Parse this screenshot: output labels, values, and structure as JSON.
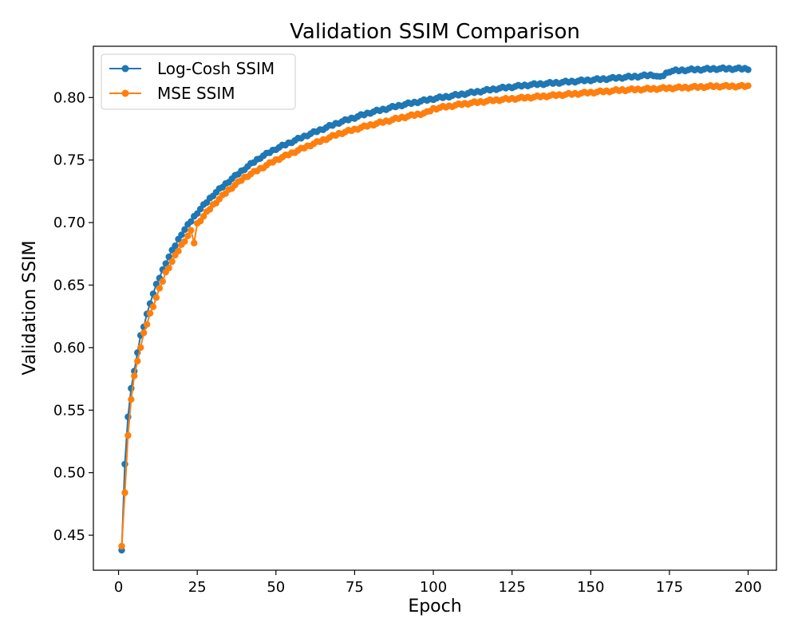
{
  "chart_data": {
    "type": "line",
    "title": "Validation SSIM Comparison",
    "xlabel": "Epoch",
    "ylabel": "Validation SSIM",
    "xlim": [
      -8,
      209
    ],
    "ylim": [
      0.422,
      0.841
    ],
    "xticks": [
      0,
      25,
      50,
      75,
      100,
      125,
      150,
      175,
      200
    ],
    "yticks": [
      0.45,
      0.5,
      0.55,
      0.6,
      0.65,
      0.7,
      0.75,
      0.8
    ],
    "ytick_labels": [
      "0.45",
      "0.50",
      "0.55",
      "0.60",
      "0.65",
      "0.70",
      "0.75",
      "0.80"
    ],
    "grid": false,
    "legend_position": "top-left",
    "markers": "circle",
    "series": [
      {
        "name": "Log-Cosh SSIM",
        "color": "#1f77b4",
        "x": [
          1,
          2,
          3,
          4,
          5,
          6,
          7,
          8,
          10,
          12,
          15,
          20,
          25,
          30,
          35,
          40,
          45,
          50,
          60,
          70,
          80,
          90,
          100,
          110,
          120,
          130,
          140,
          150,
          160,
          170,
          172,
          175,
          180,
          190,
          200
        ],
        "y": [
          0.438,
          0.506,
          0.545,
          0.567,
          0.582,
          0.596,
          0.609,
          0.617,
          0.636,
          0.65,
          0.668,
          0.691,
          0.708,
          0.722,
          0.733,
          0.743,
          0.752,
          0.759,
          0.77,
          0.78,
          0.788,
          0.794,
          0.799,
          0.803,
          0.807,
          0.81,
          0.812,
          0.814,
          0.816,
          0.818,
          0.816,
          0.821,
          0.822,
          0.823,
          0.823
        ]
      },
      {
        "name": "MSE SSIM",
        "color": "#ff7f0e",
        "x": [
          1,
          2,
          3,
          4,
          5,
          6,
          7,
          8,
          10,
          12,
          15,
          20,
          23,
          24,
          25,
          30,
          35,
          40,
          45,
          50,
          60,
          70,
          80,
          90,
          98,
          100,
          110,
          120,
          130,
          140,
          150,
          160,
          170,
          180,
          190,
          200
        ],
        "y": [
          0.442,
          0.484,
          0.529,
          0.559,
          0.577,
          0.59,
          0.6,
          0.611,
          0.627,
          0.64,
          0.66,
          0.682,
          0.693,
          0.684,
          0.699,
          0.714,
          0.726,
          0.736,
          0.743,
          0.75,
          0.761,
          0.771,
          0.778,
          0.784,
          0.788,
          0.791,
          0.795,
          0.798,
          0.8,
          0.802,
          0.804,
          0.806,
          0.807,
          0.808,
          0.809,
          0.809
        ]
      }
    ]
  }
}
